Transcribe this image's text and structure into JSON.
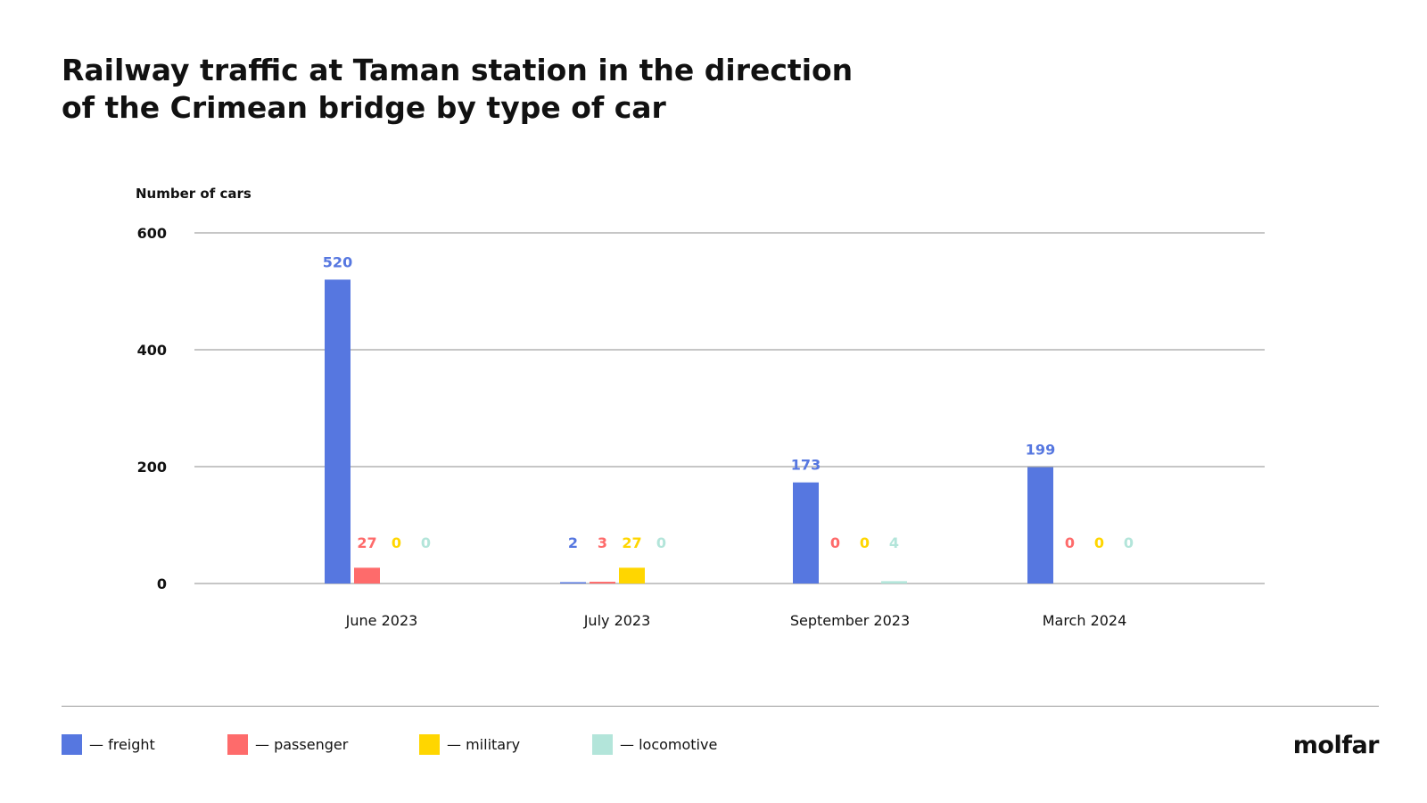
{
  "chart_data": {
    "type": "bar",
    "title_lines": [
      "Railway traffic at Taman station in the direction",
      "of the Crimean bridge by type of car"
    ],
    "ylabel": "Number of cars",
    "ylim": [
      0,
      600
    ],
    "yticks": [
      0,
      200,
      400,
      600
    ],
    "grid": true,
    "categories": [
      "June 2023",
      "July 2023",
      "September 2023",
      "March 2024"
    ],
    "series": [
      {
        "name": "— freight",
        "color": "#5677e0",
        "values": [
          520,
          2,
          173,
          199
        ]
      },
      {
        "name": "— passenger",
        "color": "#fe6b6b",
        "values": [
          27,
          3,
          0,
          0
        ]
      },
      {
        "name": "— military",
        "color": "#ffd600",
        "values": [
          0,
          27,
          0,
          0
        ]
      },
      {
        "name": "— locomotive",
        "color": "#b3e5da",
        "values": [
          0,
          0,
          4,
          0
        ]
      }
    ],
    "legend_placement": "bottom-left"
  },
  "brand": "molfar"
}
